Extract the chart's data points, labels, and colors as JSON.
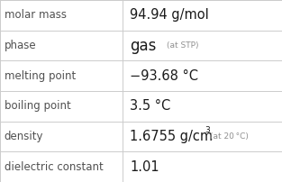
{
  "rows": [
    {
      "label": "molar mass",
      "type": "simple",
      "value": "94.94 g/mol"
    },
    {
      "label": "phase",
      "type": "phase",
      "main": "gas",
      "small": "(at STP)"
    },
    {
      "label": "melting point",
      "type": "simple",
      "value": "−93.68 °C"
    },
    {
      "label": "boiling point",
      "type": "simple",
      "value": "3.5 °C"
    },
    {
      "label": "density",
      "type": "density",
      "main": "1.6755 g/cm",
      "sup": "3",
      "small": "(at 20 °C)"
    },
    {
      "label": "dielectric constant",
      "type": "simple",
      "value": "1.01"
    }
  ],
  "bg_color": "#ffffff",
  "line_color": "#cccccc",
  "label_color": "#505050",
  "value_color": "#1a1a1a",
  "small_color": "#909090",
  "col_split": 0.435,
  "label_fontsize": 8.5,
  "value_fontsize": 10.5,
  "phase_fontsize": 12.0,
  "small_fontsize": 6.5,
  "sup_fontsize": 6.5
}
